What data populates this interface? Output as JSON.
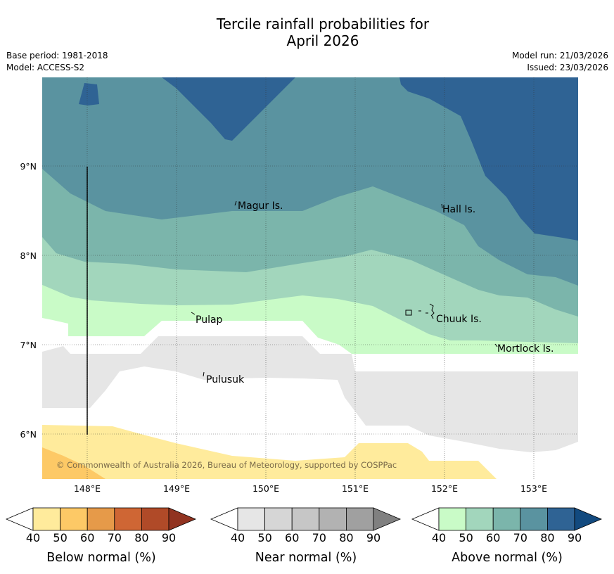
{
  "title_line1": "Tercile rainfall probabilities for",
  "title_line2": "April 2026",
  "base_period": "Base period: 1981-2018",
  "model": "Model: ACCESS-S2",
  "model_run": "Model run: 21/03/2026",
  "issued": "Issued: 23/03/2026",
  "copyright": "© Commonwealth of Australia 2026, Bureau of Meteorology, supported by COSPPac",
  "lat_labels": [
    "9°N",
    "8°N",
    "7°N",
    "6°N"
  ],
  "lon_labels": [
    "148°E",
    "149°E",
    "150°E",
    "151°E",
    "152°E",
    "153°E"
  ],
  "places": [
    {
      "name": "Magur Is."
    },
    {
      "name": "Hall Is."
    },
    {
      "name": "Pulap"
    },
    {
      "name": "Chuuk Is."
    },
    {
      "name": "Mortlock Is."
    },
    {
      "name": "Pulusuk"
    }
  ],
  "colorbars": [
    {
      "label": "Below normal (%)",
      "ticks": [
        "40",
        "50",
        "60",
        "70",
        "80",
        "90"
      ],
      "colors": [
        "#ffffff",
        "#ffeb9c",
        "#fdc966",
        "#e69a49",
        "#cf6634",
        "#b04a28",
        "#913320"
      ]
    },
    {
      "label": "Near normal (%)",
      "ticks": [
        "40",
        "50",
        "60",
        "70",
        "80",
        "90"
      ],
      "colors": [
        "#ffffff",
        "#e6e6e6",
        "#d6d6d6",
        "#c6c6c6",
        "#b2b2b2",
        "#a0a0a0",
        "#808080"
      ]
    },
    {
      "label": "Above normal (%)",
      "ticks": [
        "40",
        "50",
        "60",
        "70",
        "80",
        "90"
      ],
      "colors": [
        "#ffffff",
        "#c9fbc7",
        "#a2d6bc",
        "#7bb5ab",
        "#5a93a0",
        "#2f6394",
        "#124a7f"
      ]
    }
  ]
}
